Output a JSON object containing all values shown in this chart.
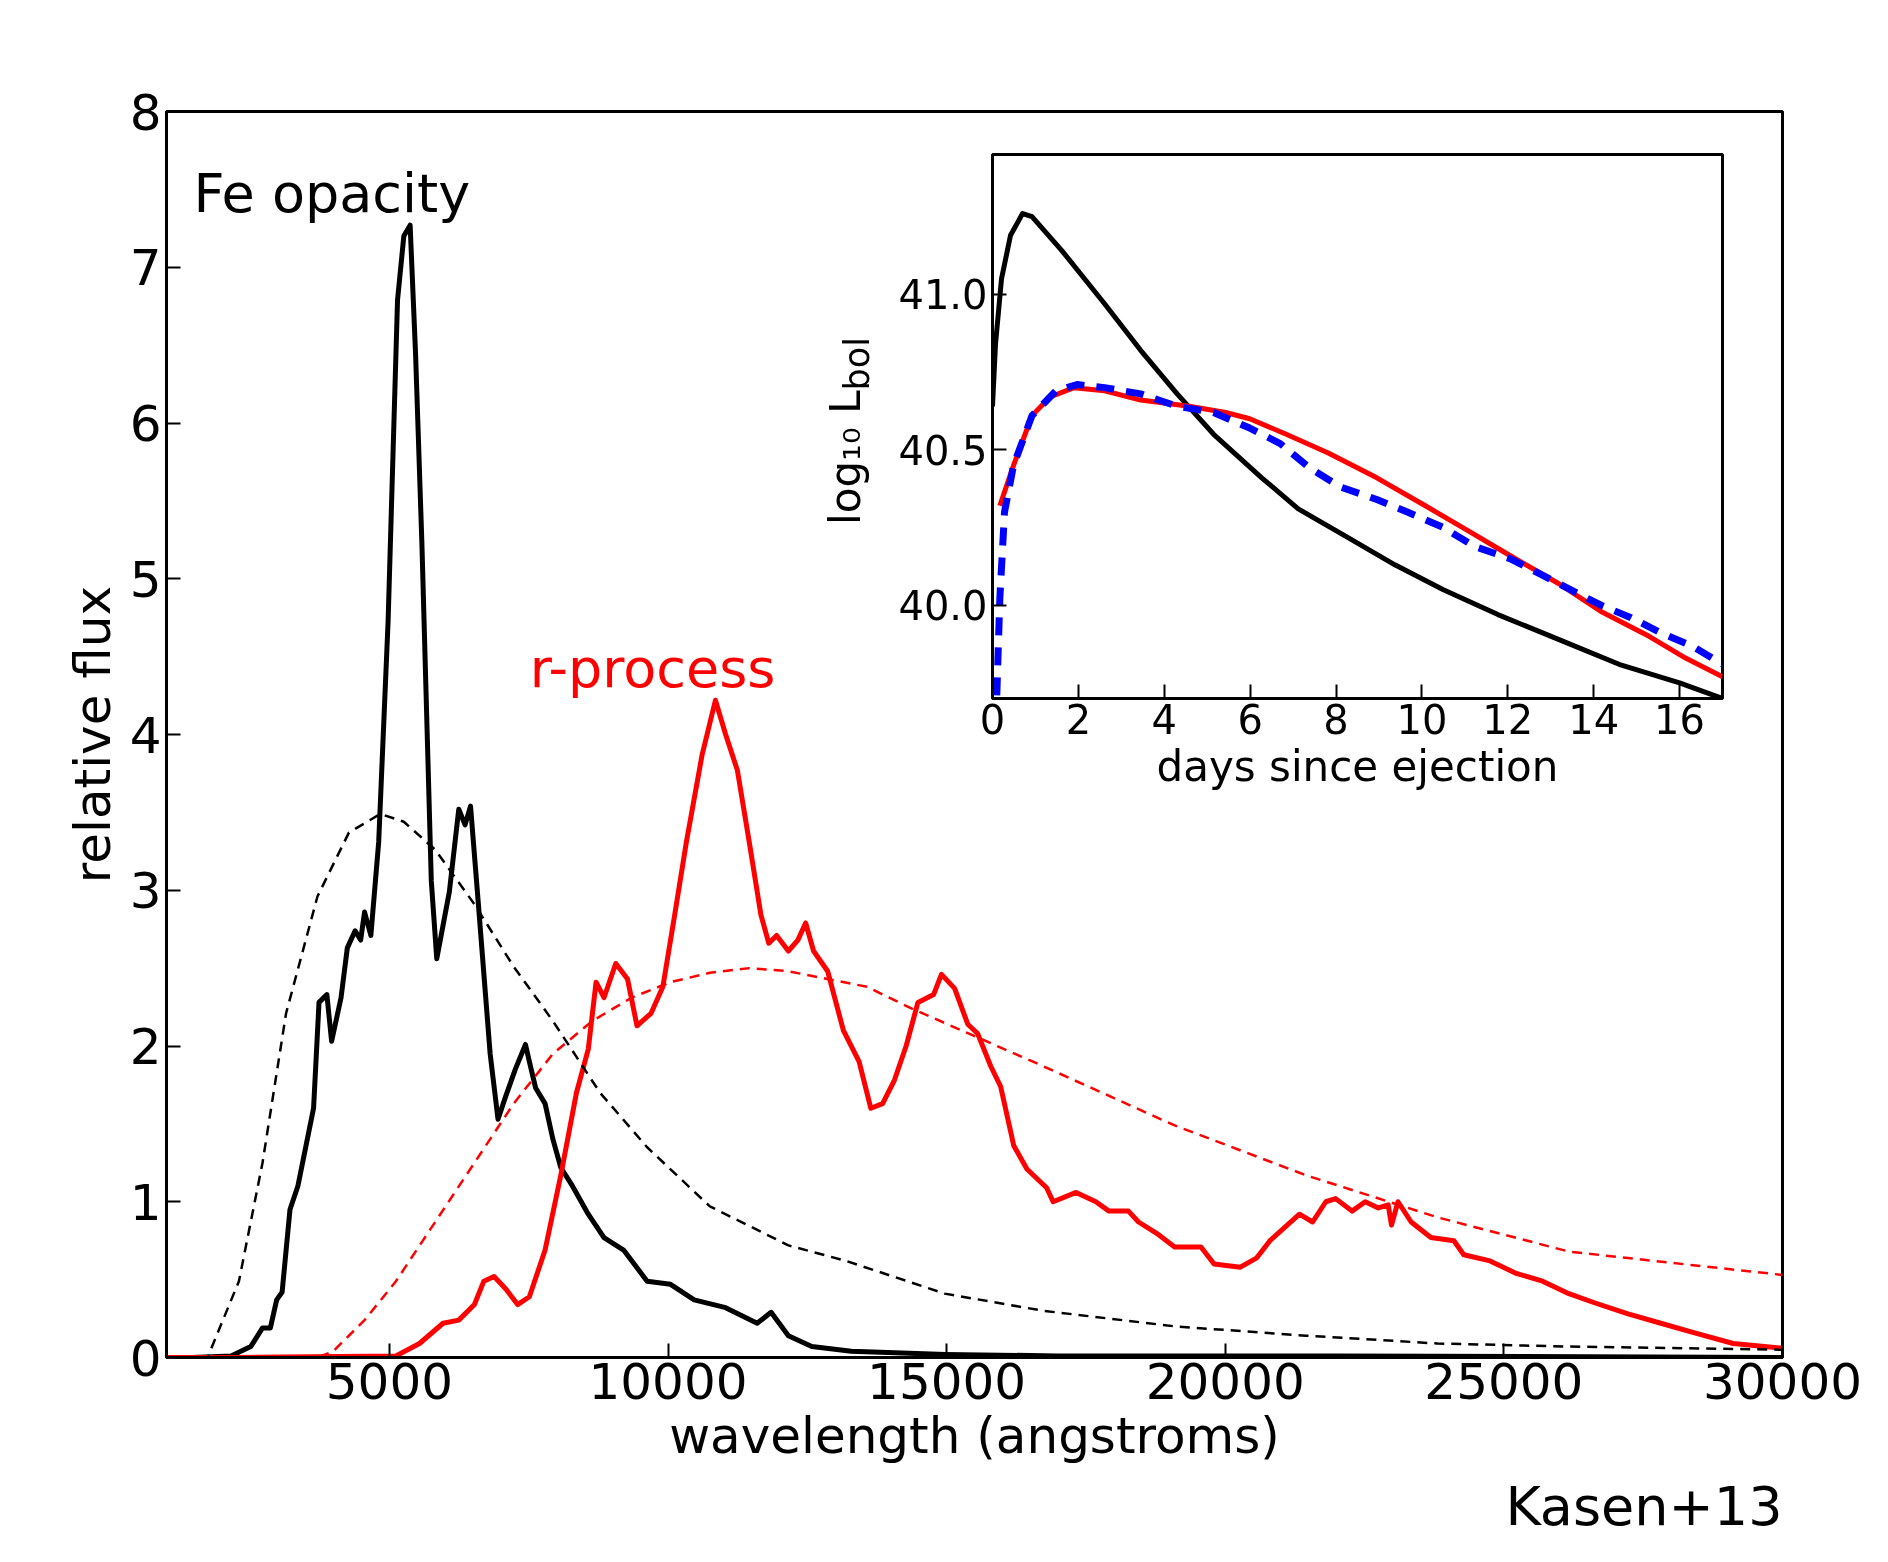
{
  "chart_data": [
    {
      "type": "line",
      "xlabel": "wavelength (angstroms)",
      "ylabel": "relative flux",
      "xlim": [
        1000,
        30000
      ],
      "ylim": [
        0,
        8
      ],
      "xticks": [
        5000,
        10000,
        15000,
        20000,
        25000,
        30000
      ],
      "yticks": [
        0,
        1,
        2,
        3,
        4,
        5,
        6,
        7,
        8
      ],
      "grid": false,
      "annotations": [
        "Kasen+13"
      ],
      "series": [
        {
          "name": "Fe opacity",
          "color": "#000000",
          "line_style": "solid",
          "x": [
            1455,
            2160,
            2512,
            2723,
            2864,
            2977,
            3075,
            3216,
            3357,
            3498,
            3639,
            3737,
            3878,
            3963,
            4132,
            4245,
            4385,
            4484,
            4554,
            4667,
            4808,
            4977,
            5146,
            5259,
            5372,
            5470,
            5583,
            5752,
            5850,
            6076,
            6245,
            6358,
            6456,
            6597,
            6808,
            6949,
            7090,
            7259,
            7442,
            7512,
            7625,
            7794,
            7935,
            8076,
            8287,
            8569,
            8851,
            9203,
            9625,
            10045,
            10470,
            11034,
            11600,
            11850,
            12160,
            12580,
            13290,
            14978,
            17000,
            22000,
            30000
          ],
          "values": [
            0,
            0.01,
            0.07,
            0.19,
            0.19,
            0.37,
            0.42,
            0.95,
            1.1,
            1.35,
            1.6,
            2.28,
            2.33,
            2.03,
            2.31,
            2.63,
            2.74,
            2.68,
            2.86,
            2.71,
            3.31,
            4.73,
            6.79,
            7.2,
            7.27,
            6.44,
            5.23,
            3.06,
            2.56,
            2.99,
            3.52,
            3.42,
            3.54,
            2.91,
            1.95,
            1.53,
            1.68,
            1.85,
            2.01,
            1.9,
            1.73,
            1.63,
            1.4,
            1.22,
            1.1,
            0.92,
            0.77,
            0.69,
            0.49,
            0.47,
            0.37,
            0.32,
            0.22,
            0.29,
            0.14,
            0.07,
            0.04,
            0.02,
            0.01,
            0.01,
            0
          ]
        },
        {
          "name": "r-process",
          "color": "#ff0000",
          "line_style": "solid",
          "x": [
            1000,
            2300,
            5118,
            5540,
            5963,
            6245,
            6526,
            6695,
            6878,
            7090,
            7301,
            7512,
            7794,
            8076,
            8357,
            8569,
            8709,
            8851,
            9062,
            9273,
            9443,
            9696,
            9907,
            10119,
            10330,
            10612,
            10851,
            11034,
            11245,
            11457,
            11668,
            11809,
            11949,
            12160,
            12330,
            12470,
            12612,
            12865,
            13147,
            13429,
            13640,
            13851,
            14062,
            14273,
            14485,
            14766,
            14907,
            15143,
            15379,
            15556,
            15792,
            15969,
            16205,
            16440,
            16794,
            16911,
            17324,
            17678,
            17914,
            18263,
            18444,
            18798,
            19092,
            19564,
            19800,
            20271,
            20566,
            20802,
            21332,
            21568,
            21804,
            21981,
            22275,
            22511,
            22747,
            22924,
            22983,
            23100,
            23336,
            23690,
            24103,
            24280,
            24752,
            25223,
            25695,
            26167,
            26638,
            27228,
            27817,
            28407,
            29115,
            30000
          ],
          "values": [
            0,
            0,
            0.01,
            0.09,
            0.22,
            0.24,
            0.34,
            0.49,
            0.52,
            0.44,
            0.34,
            0.39,
            0.69,
            1.17,
            1.7,
            1.98,
            2.41,
            2.31,
            2.53,
            2.43,
            2.13,
            2.21,
            2.38,
            2.84,
            3.31,
            3.87,
            4.22,
            4.0,
            3.77,
            3.31,
            2.84,
            2.66,
            2.71,
            2.61,
            2.68,
            2.79,
            2.61,
            2.48,
            2.1,
            1.9,
            1.6,
            1.63,
            1.78,
            2.0,
            2.28,
            2.33,
            2.46,
            2.37,
            2.14,
            2.08,
            1.87,
            1.74,
            1.36,
            1.21,
            1.09,
            1.0,
            1.06,
            1.0,
            0.94,
            0.94,
            0.87,
            0.79,
            0.71,
            0.71,
            0.6,
            0.58,
            0.64,
            0.75,
            0.92,
            0.87,
            1.0,
            1.02,
            0.94,
            1.0,
            0.96,
            0.98,
            0.85,
            1.0,
            0.87,
            0.77,
            0.75,
            0.66,
            0.62,
            0.54,
            0.49,
            0.41,
            0.35,
            0.28,
            0.22,
            0.16,
            0.09,
            0.06
          ]
        },
        {
          "color": "#000000",
          "line_style": "dashed",
          "x": [
            1000,
            1737,
            2300,
            2723,
            3146,
            3709,
            4273,
            4836,
            5259,
            5822,
            6526,
            7230,
            7935,
            8780,
            9625,
            10752,
            12160,
            13198,
            14966,
            16735,
            19092,
            21450,
            23808,
            26167,
            30000
          ],
          "values": [
            0,
            0,
            0.49,
            1.25,
            2.21,
            2.96,
            3.37,
            3.49,
            3.44,
            3.26,
            2.91,
            2.51,
            2.16,
            1.7,
            1.35,
            0.97,
            0.72,
            0.62,
            0.41,
            0.3,
            0.2,
            0.14,
            0.09,
            0.07,
            0.05
          ]
        },
        {
          "color": "#ff0000",
          "line_style": "dashed",
          "x": [
            1000,
            3709,
            3991,
            4554,
            5118,
            5822,
            6526,
            7230,
            7935,
            8639,
            9344,
            10045,
            10752,
            11457,
            12160,
            13570,
            14377,
            16735,
            19092,
            21450,
            23808,
            26167,
            30000
          ],
          "values": [
            0,
            0,
            0.04,
            0.24,
            0.49,
            0.87,
            1.25,
            1.63,
            1.95,
            2.16,
            2.31,
            2.41,
            2.47,
            2.5,
            2.48,
            2.38,
            2.24,
            1.87,
            1.49,
            1.17,
            0.9,
            0.68,
            0.53
          ]
        }
      ]
    },
    {
      "type": "line",
      "xlabel": "days since ejection",
      "ylabel": "log₁₀ L$_{bol}$",
      "xlim": [
        0,
        17
      ],
      "ylim": [
        39.7,
        41.45
      ],
      "xticks": [
        0,
        2,
        4,
        6,
        8,
        10,
        12,
        14,
        16
      ],
      "yticks": [
        {
          "value": 40,
          "label": "40.0"
        },
        {
          "value": 40.5,
          "label": "40.5"
        },
        {
          "value": 41,
          "label": "41.0"
        }
      ],
      "grid": false,
      "series": [
        {
          "color": "#000000",
          "line_style": "solid",
          "x": [
            0,
            0.07,
            0.21,
            0.42,
            0.7,
            0.92,
            1.62,
            2.61,
            3.45,
            4.3,
            5.15,
            6.27,
            7.12,
            8.25,
            9.37,
            10.5,
            11.77,
            13.18,
            14.59,
            16.0,
            17.0
          ],
          "values": [
            40.64,
            40.84,
            41.05,
            41.19,
            41.26,
            41.25,
            41.14,
            40.97,
            40.82,
            40.68,
            40.55,
            40.41,
            40.31,
            40.22,
            40.13,
            40.05,
            39.97,
            39.89,
            39.81,
            39.75,
            39.7
          ]
        },
        {
          "color": "#ff0000",
          "line_style": "solid",
          "x": [
            0.17,
            0.49,
            0.92,
            1.34,
            1.9,
            2.61,
            3.45,
            4.58,
            5.43,
            5.99,
            6.84,
            7.82,
            8.95,
            10.08,
            11.07,
            12.05,
            13.18,
            14.17,
            15.29,
            16.14,
            17.0
          ],
          "values": [
            40.32,
            40.45,
            40.61,
            40.67,
            40.7,
            40.69,
            40.66,
            40.64,
            40.62,
            40.6,
            40.55,
            40.49,
            40.41,
            40.32,
            40.24,
            40.16,
            40.07,
            39.98,
            39.9,
            39.83,
            39.77
          ]
        },
        {
          "color": "#0000ff",
          "line_style": "dashed",
          "x": [
            0.1,
            0.17,
            0.28,
            0.49,
            0.92,
            1.48,
            1.97,
            2.61,
            3.45,
            4.3,
            5.15,
            5.99,
            6.7,
            7.4,
            8.11,
            8.95,
            9.66,
            10.5,
            11.21,
            12.05,
            12.76,
            13.46,
            14.17,
            14.87,
            15.58,
            16.28,
            17.0
          ],
          "values": [
            39.71,
            40.02,
            40.3,
            40.45,
            40.61,
            40.69,
            40.71,
            40.7,
            40.68,
            40.64,
            40.62,
            40.57,
            40.52,
            40.44,
            40.38,
            40.34,
            40.3,
            40.25,
            40.19,
            40.15,
            40.1,
            40.05,
            40.0,
            39.96,
            39.91,
            39.87,
            39.81
          ]
        }
      ]
    }
  ]
}
